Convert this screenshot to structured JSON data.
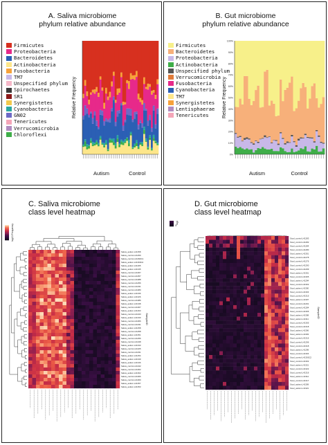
{
  "panels": {
    "a": {
      "title_line1": "A. Saliva microbiome",
      "title_line2": "phylum relative abundance"
    },
    "b": {
      "title_line1": "B. Gut microbiome",
      "title_line2": "phylum relative abundance"
    },
    "c": {
      "title_line1": "C. Saliva microbiome",
      "title_line2": "class level heatmap"
    },
    "d": {
      "title_line1": "D. Gut microbiome",
      "title_line2": "class level heatmap"
    }
  },
  "chart_data": [
    {
      "type": "bar",
      "stacked": true,
      "title": "A. Saliva microbiome phylum relative abundance",
      "ylabel": "Relative Frequency",
      "group_labels": [
        "Autism",
        "Control"
      ],
      "ylim": [
        0,
        100
      ],
      "n_samples": 40,
      "legend": [
        {
          "name": "Firmicutes",
          "color": "#d7301f"
        },
        {
          "name": "Proteobacteria",
          "color": "#e7298a"
        },
        {
          "name": "Bacteroidetes",
          "color": "#2b5fb4"
        },
        {
          "name": "Actinobacteria",
          "color": "#fde68a"
        },
        {
          "name": "Fusobacteria",
          "color": "#f7a23b"
        },
        {
          "name": "TM7",
          "color": "#c8b8e8"
        },
        {
          "name": "Unspecified phylum",
          "color": "#f5b7c8"
        },
        {
          "name": "Spirochaetes",
          "color": "#3a3a3a"
        },
        {
          "name": "SR1",
          "color": "#8b1a1a"
        },
        {
          "name": "Synergistetes",
          "color": "#f2c94c"
        },
        {
          "name": "Cyanobacteria",
          "color": "#2aa7a0"
        },
        {
          "name": "GN02",
          "color": "#6e6ac6"
        },
        {
          "name": "Tenericutes",
          "color": "#f4a6b8"
        },
        {
          "name": "Verrucomicrobia",
          "color": "#b08cc0"
        },
        {
          "name": "Chloroflexi",
          "color": "#3fae49"
        }
      ],
      "mean_composition": {
        "Firmicutes": 40,
        "Proteobacteria": 18,
        "Bacteroidetes": 18,
        "Actinobacteria": 8,
        "Fusobacteria": 4,
        "Other": 12
      }
    },
    {
      "type": "bar",
      "stacked": true,
      "title": "B. Gut microbiome phylum relative abundance",
      "ylabel": "Relative Frequency",
      "group_labels": [
        "Autism",
        "Control"
      ],
      "ylim": [
        0,
        100
      ],
      "yticks": [
        "0%",
        "10%",
        "20%",
        "30%",
        "40%",
        "50%",
        "60%",
        "70%",
        "80%",
        "90%",
        "100%"
      ],
      "n_samples": 40,
      "legend": [
        {
          "name": "Firmicutes",
          "color": "#f7f08a"
        },
        {
          "name": "Bacteroidetes",
          "color": "#f7b07a"
        },
        {
          "name": "Proteobacteria",
          "color": "#c8b8e8"
        },
        {
          "name": "Actinobacteria",
          "color": "#3fae49"
        },
        {
          "name": "Unspecified phylum",
          "color": "#555555"
        },
        {
          "name": "Verrucomicrobia",
          "color": "#e07b39"
        },
        {
          "name": "Fusobacteria",
          "color": "#e7298a"
        },
        {
          "name": "Cyanobacteria",
          "color": "#2b5fb4"
        },
        {
          "name": "TM7",
          "color": "#fde68a"
        },
        {
          "name": "Synergistetes",
          "color": "#f7a23b"
        },
        {
          "name": "Lentisphaerae",
          "color": "#b08cc0"
        },
        {
          "name": "Tenericutes",
          "color": "#f4a6b8"
        }
      ],
      "mean_composition": {
        "Firmicutes": 50,
        "Bacteroidetes": 35,
        "Proteobacteria": 7,
        "Actinobacteria": 4,
        "Other": 4
      }
    },
    {
      "type": "heatmap",
      "title": "C. Saliva microbiome class level heatmap",
      "colorbar_label": "log10 Frequency",
      "row_axis_label": "SampleID",
      "rows": 40,
      "cols": 24,
      "row_labels": [
        "Saliva_autism.L41358",
        "Saliva_control.L41250",
        "Saliva_control.L41390C1",
        "Saliva_autism.L41360C2",
        "Saliva_autism.L41265",
        "Saliva_autism.L41345",
        "Saliva_control.L41367",
        "Saliva_control.L41357",
        "Saliva_control.L41388",
        "Saliva_control.L41256",
        "Saliva_control.L41331",
        "Saliva_control.L41380",
        "Saliva_autism.L41336",
        "Saliva_autism.L41326",
        "Saliva_control.L41386",
        "Saliva_autism.L41348",
        "Saliva_control.L41367",
        "Saliva_autism.L41263",
        "Saliva_control.L41343",
        "Saliva_autism.L41330",
        "Saliva_control.L41366",
        "Saliva_control.L41331",
        "Saliva_autism.L41258",
        "Saliva_control.L41258",
        "Saliva_autism.L41351",
        "Saliva_control.L41256",
        "Saliva_control.L41348",
        "Saliva_autism.L41333",
        "Saliva_control.L41325",
        "Saliva_control.L41331",
        "Saliva_autism.L41254",
        "Saliva_autism.L41349",
        "Saliva_autism.L41346",
        "Saliva_control.L41342",
        "Saliva_control.L41362",
        "Saliva_autism.L41362",
        "Saliva_control.L41366",
        "Saliva_control.L41360",
        "Saliva_autism.L41357",
        "Saliva_autism.L41353"
      ]
    },
    {
      "type": "heatmap",
      "title": "D. Gut microbiome class level heatmap",
      "colorbar_label": "log10 Frequency",
      "colorbar_ticks": [
        "0",
        "-5"
      ],
      "row_axis_label": "SampleID",
      "rows": 40,
      "cols": 24,
      "row_labels": [
        "Stool_control.L41283",
        "Stool_control.L41282",
        "Stool_control.L41284",
        "Stool_control.L41280",
        "Stool_autism.L41301",
        "Stool_control.L41278",
        "Stool_control.L41276",
        "Stool_control.L41290",
        "Stool_control.L41299",
        "Stool_autism.L41301",
        "Stool_control.L41305",
        "Stool_autism.L41294",
        "Stool_control.L41302",
        "Stool_autism.L41300",
        "Stool_control.L41304",
        "Stool_control.L41315",
        "Stool_autism.L41307",
        "Stool_control.L41291",
        "Stool_control.L41284",
        "Stool_control.L41306",
        "Stool_autism.L41308",
        "Stool_autism.L41311",
        "Stool_control.L41305",
        "Stool_control.L41318",
        "Stool_autism.L41306",
        "Stool_autism.L41303",
        "Stool_control.L41316",
        "Stool_control.L41296",
        "Stool_control.L41318",
        "Stool_autism.L41299",
        "Stool_control.L41304",
        "Stool_control.L41300C2",
        "Stool_control.L41302",
        "Stool_autism.L41321",
        "Stool_control.L41322",
        "Stool_control.L41316",
        "Stool_autism.L41312",
        "Stool_control.L41317",
        "Stool_autism.L41309",
        "Stool_autism.L41321"
      ]
    }
  ]
}
